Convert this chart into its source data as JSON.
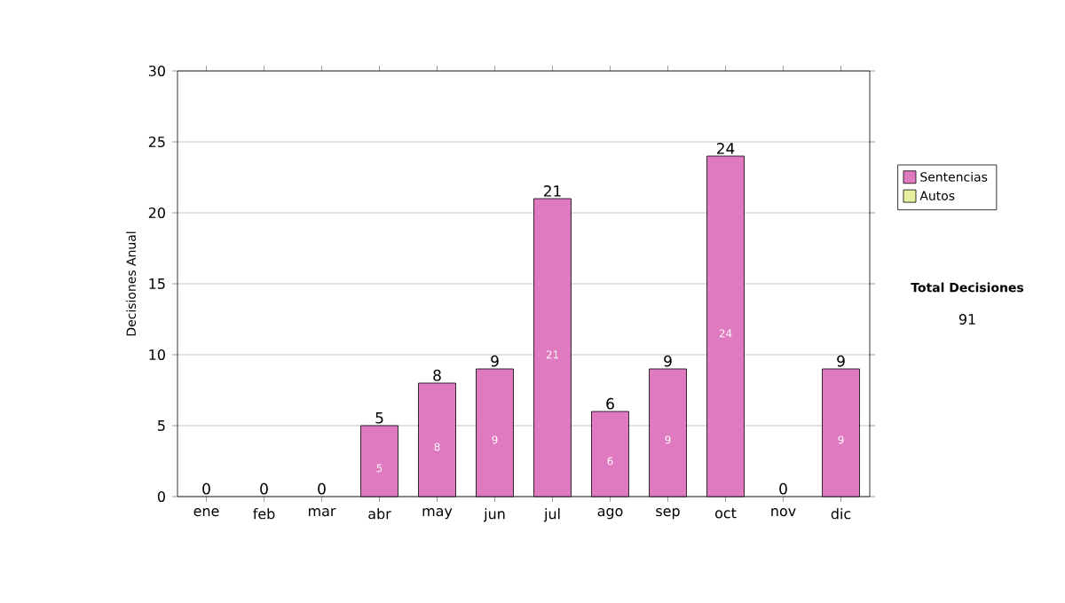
{
  "chart_data": {
    "type": "bar",
    "ylabel": "Decisiones Anual",
    "categories": [
      "ene",
      "feb",
      "mar",
      "abr",
      "may",
      "jun",
      "jul",
      "ago",
      "sep",
      "oct",
      "nov",
      "dic"
    ],
    "series": [
      {
        "name": "Sentencias",
        "color": "#e07ac0",
        "values": [
          0,
          0,
          0,
          5,
          8,
          9,
          21,
          6,
          9,
          24,
          0,
          9
        ],
        "value_labels": [
          null,
          null,
          null,
          "5",
          "8",
          "9",
          "21",
          "6",
          "9",
          "24",
          null,
          "9"
        ]
      },
      {
        "name": "Autos",
        "color": "#e8f0a0",
        "values": [
          0,
          0,
          0,
          0,
          0,
          0,
          0,
          0,
          0,
          0,
          0,
          0
        ]
      }
    ],
    "stacked": true,
    "totals": [
      "0",
      "0",
      "0",
      "5",
      "8",
      "9",
      "21",
      "6",
      "9",
      "24",
      "0",
      "9"
    ],
    "ylim": [
      0,
      30
    ],
    "yticks": [
      0,
      5,
      10,
      15,
      20,
      25,
      30
    ],
    "grid": "y",
    "legend": "right",
    "annotations": [
      "Total Decisiones",
      "91"
    ]
  }
}
